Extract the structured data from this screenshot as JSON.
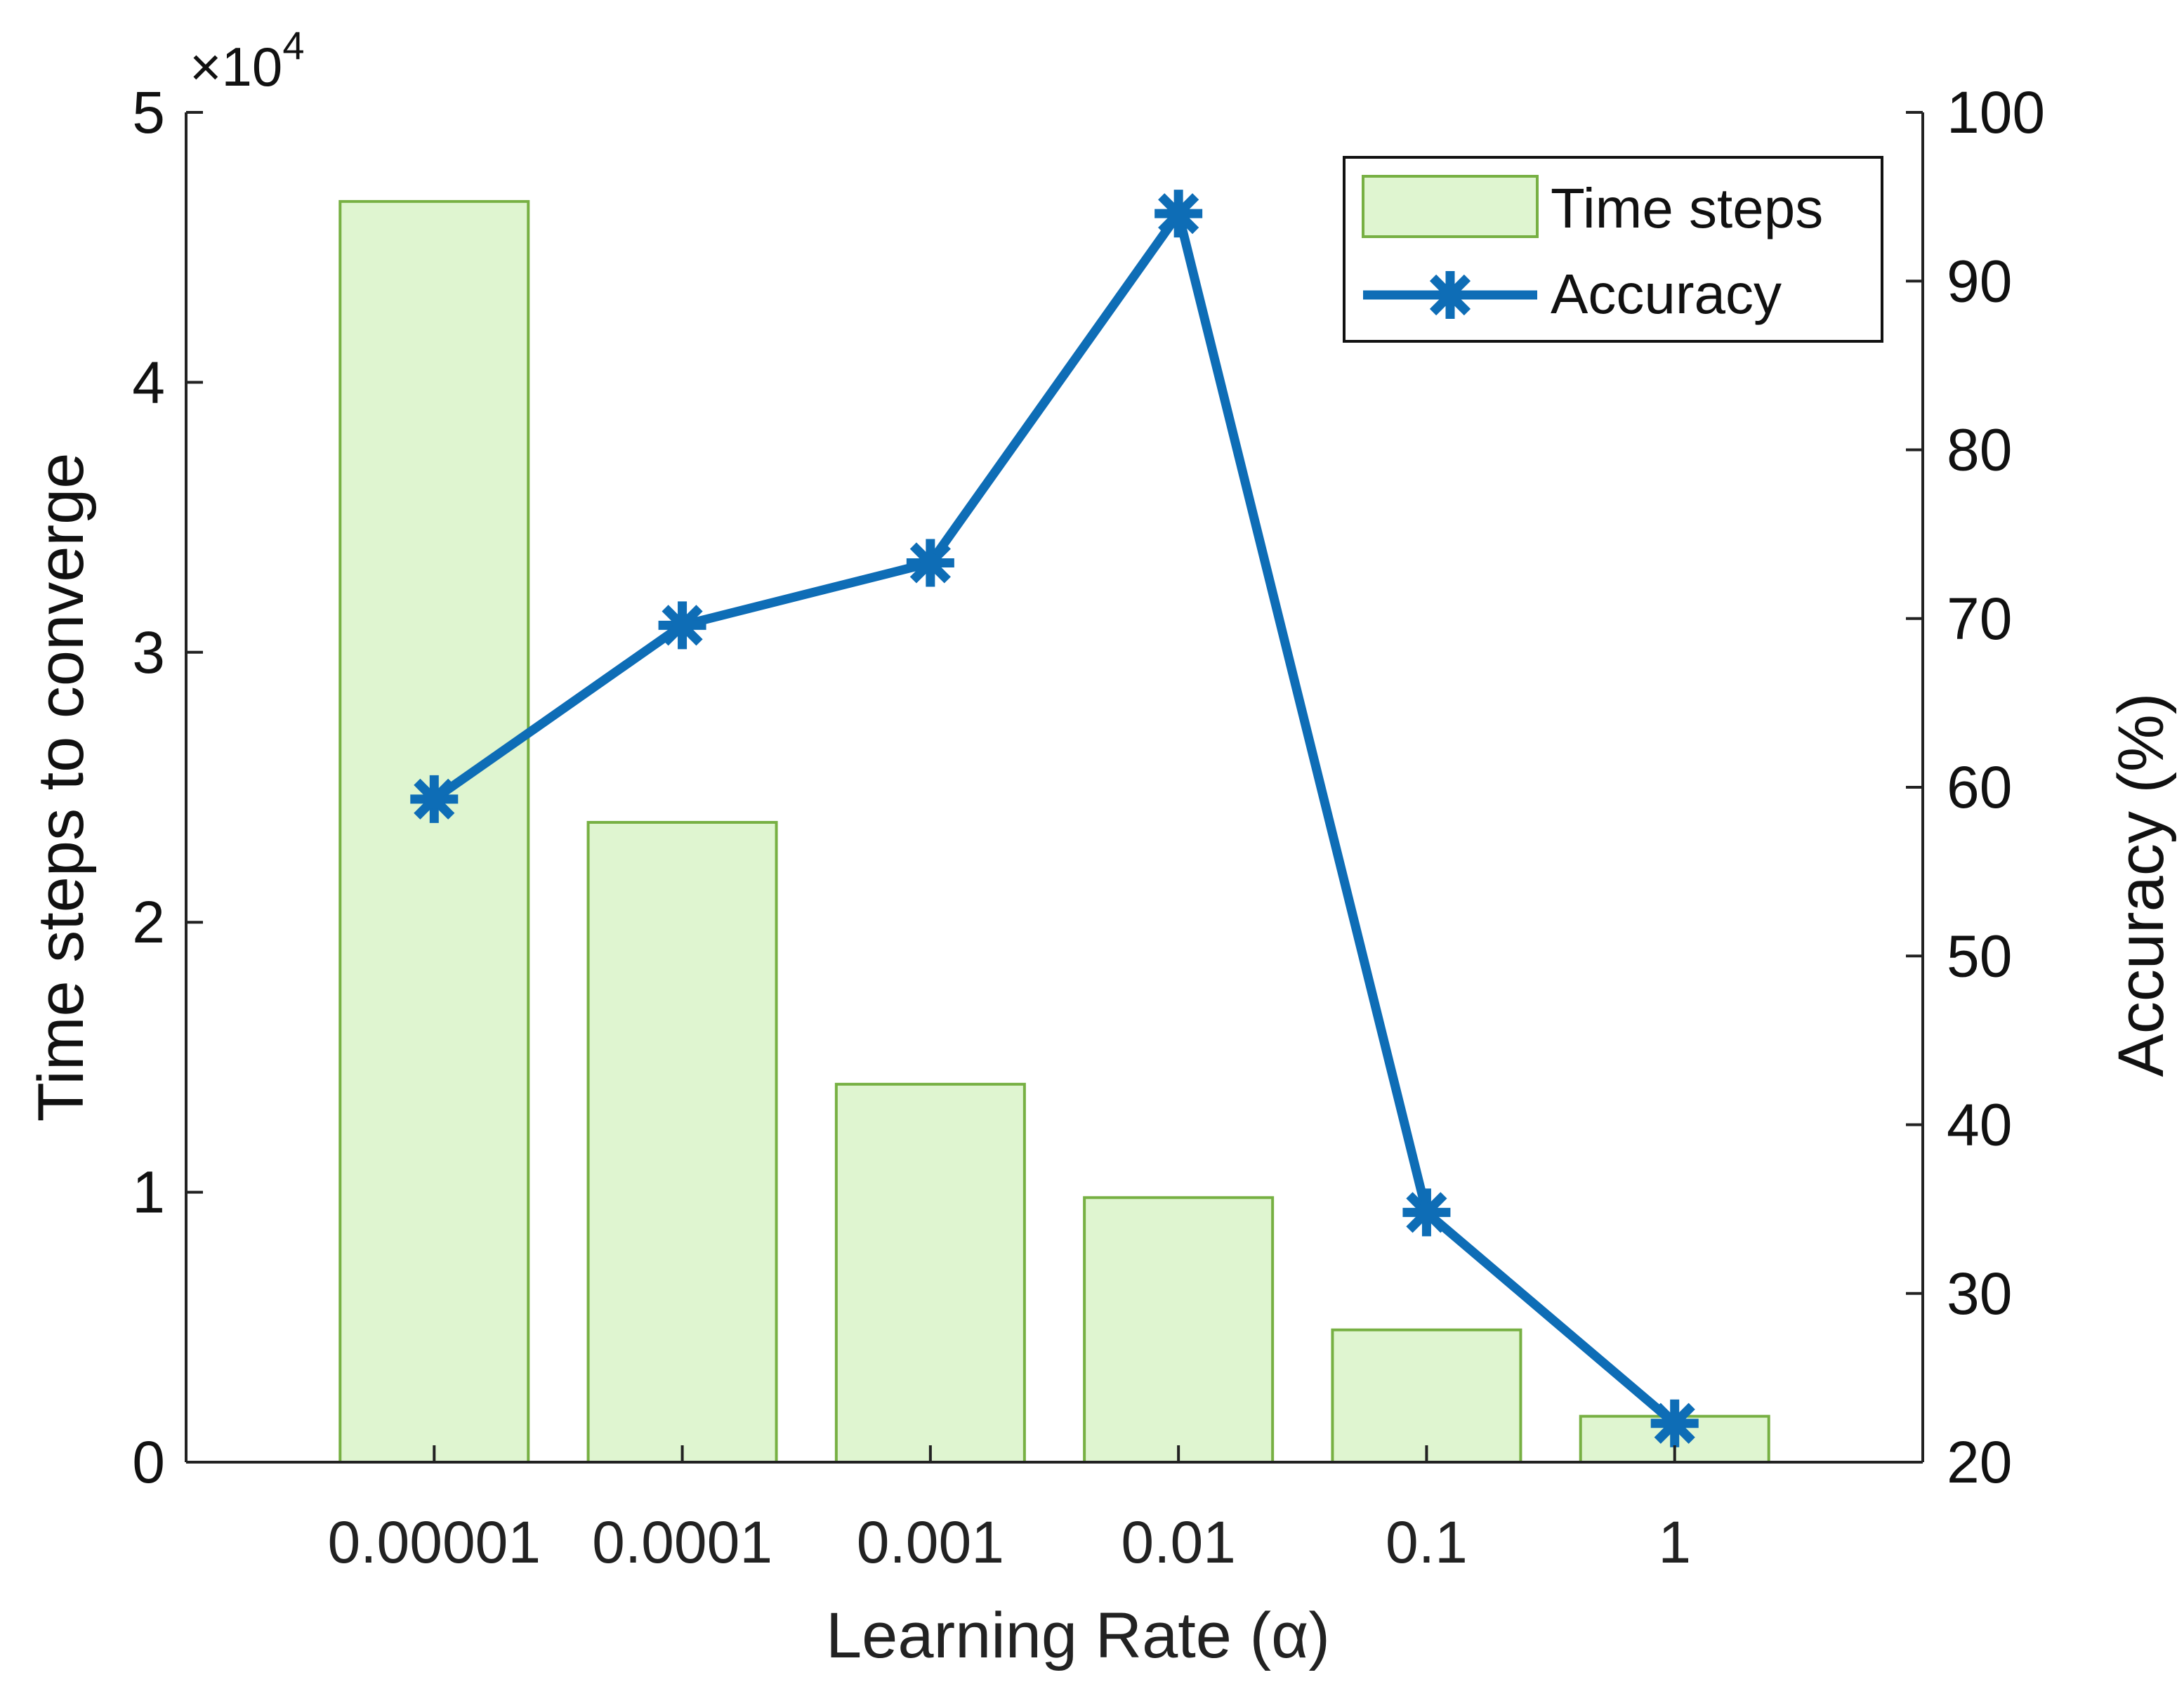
{
  "chart_data": {
    "type": "bar",
    "categories": [
      "0.00001",
      "0.0001",
      "0.001",
      "0.01",
      "0.1",
      "1"
    ],
    "xlabel": "Learning Rate (α)",
    "ylabel": "Time steps to converge",
    "y_exponent_label": "×10",
    "y_exponent_power": "4",
    "ylim": [
      0,
      5
    ],
    "yticks": [
      "0",
      "1",
      "2",
      "3",
      "4",
      "5"
    ],
    "y2label": "Accuracy (%)",
    "y2lim": [
      20,
      100
    ],
    "y2ticks": [
      "20",
      "30",
      "40",
      "50",
      "60",
      "70",
      "80",
      "90",
      "100"
    ],
    "legend_position": "top-right",
    "series": [
      {
        "name": "Time steps",
        "type": "bar",
        "axis": "left",
        "values": [
          4.67,
          2.37,
          1.4,
          0.98,
          0.49,
          0.17
        ],
        "fill": "#dff5d0",
        "stroke": "#77b043"
      },
      {
        "name": "Accuracy",
        "type": "line",
        "axis": "right",
        "marker": "asterisk",
        "values": [
          59.3,
          69.6,
          73.3,
          94.0,
          34.8,
          22.3
        ],
        "color": "#0e6db6"
      }
    ]
  }
}
